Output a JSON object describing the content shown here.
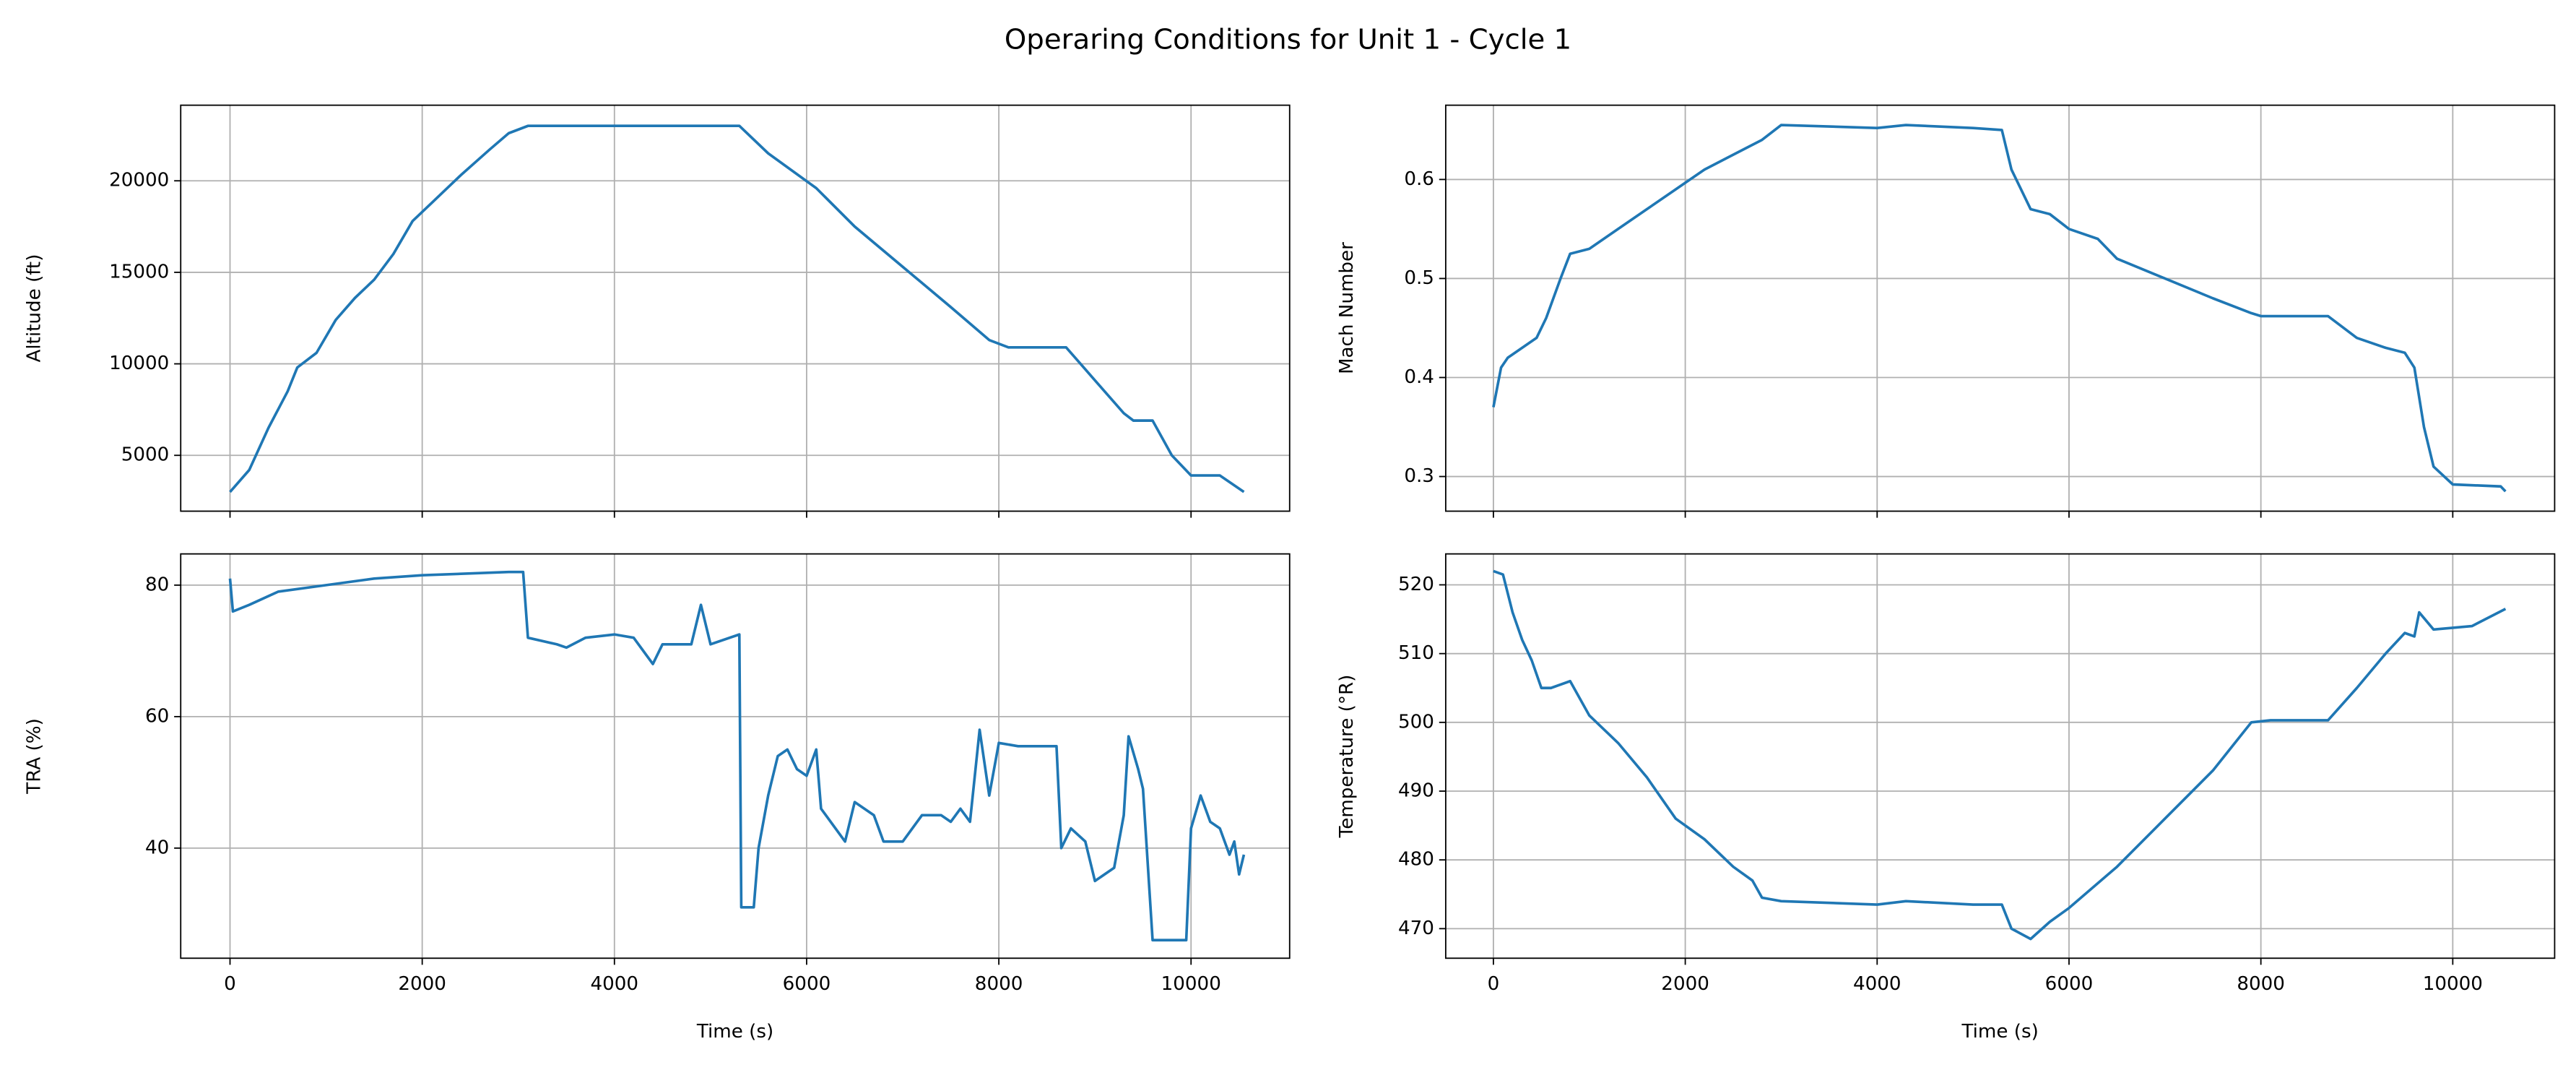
{
  "title": "Operaring Conditions for Unit 1 - Cycle 1",
  "chart_data": [
    {
      "type": "line",
      "ylabel": "Altitude (ft)",
      "color": "#1f77b4",
      "grid": true,
      "xticklabels": false,
      "xlim": [
        -513,
        11026
      ],
      "ylim": [
        1950,
        24130
      ],
      "xticks": [
        0,
        2000,
        4000,
        6000,
        8000,
        10000
      ],
      "yticks": [
        5000,
        10000,
        15000,
        20000
      ],
      "x": [
        0,
        200,
        400,
        600,
        700,
        900,
        1100,
        1300,
        1500,
        1700,
        1900,
        2100,
        2400,
        2700,
        2900,
        3100,
        5300,
        5600,
        6100,
        6500,
        7000,
        7500,
        7900,
        8100,
        8700,
        9000,
        9300,
        9400,
        9600,
        9800,
        10000,
        10300,
        10550
      ],
      "values": [
        3000,
        4200,
        6500,
        8500,
        9800,
        10600,
        12400,
        13600,
        14600,
        16000,
        17800,
        18800,
        20300,
        21700,
        22600,
        23000,
        23000,
        21500,
        19600,
        17500,
        15300,
        13100,
        11300,
        10900,
        10900,
        9100,
        7300,
        6900,
        6900,
        5000,
        3900,
        3900,
        3000
      ]
    },
    {
      "type": "line",
      "ylabel": "Mach Number",
      "color": "#1f77b4",
      "grid": true,
      "xticklabels": false,
      "xlim": [
        -497,
        11062
      ],
      "ylim": [
        0.265,
        0.675
      ],
      "xticks": [
        0,
        2000,
        4000,
        6000,
        8000,
        10000
      ],
      "yticks": [
        0.3,
        0.4,
        0.5,
        0.6
      ],
      "x": [
        0,
        80,
        150,
        300,
        450,
        550,
        700,
        800,
        1000,
        1300,
        1600,
        1900,
        2200,
        2500,
        2800,
        3000,
        4000,
        4300,
        5000,
        5300,
        5400,
        5600,
        5800,
        6000,
        6300,
        6500,
        7000,
        7500,
        7900,
        8000,
        8700,
        9000,
        9300,
        9500,
        9600,
        9700,
        9800,
        10000,
        10500,
        10550
      ],
      "values": [
        0.37,
        0.41,
        0.42,
        0.43,
        0.44,
        0.46,
        0.5,
        0.525,
        0.53,
        0.55,
        0.57,
        0.59,
        0.61,
        0.625,
        0.64,
        0.655,
        0.652,
        0.655,
        0.652,
        0.65,
        0.61,
        0.57,
        0.565,
        0.55,
        0.54,
        0.52,
        0.5,
        0.48,
        0.465,
        0.462,
        0.462,
        0.44,
        0.43,
        0.425,
        0.41,
        0.35,
        0.31,
        0.292,
        0.29,
        0.285
      ]
    },
    {
      "type": "line",
      "ylabel": "TRA (%)",
      "xlabel": "Time (s)",
      "color": "#1f77b4",
      "grid": true,
      "xticklabels": true,
      "xlim": [
        -513,
        11026
      ],
      "ylim": [
        23.25,
        84.75
      ],
      "xticks": [
        0,
        2000,
        4000,
        6000,
        8000,
        10000
      ],
      "yticks": [
        40,
        60,
        80
      ],
      "x": [
        0,
        30,
        200,
        500,
        1000,
        1500,
        2000,
        2900,
        3050,
        3100,
        3400,
        3500,
        3700,
        4000,
        4200,
        4400,
        4500,
        4800,
        4900,
        5000,
        5300,
        5320,
        5450,
        5500,
        5600,
        5700,
        5800,
        5900,
        6000,
        6100,
        6150,
        6300,
        6400,
        6500,
        6700,
        6800,
        7000,
        7200,
        7400,
        7500,
        7600,
        7700,
        7800,
        7900,
        8000,
        8200,
        8600,
        8650,
        8750,
        8900,
        9000,
        9200,
        9300,
        9350,
        9450,
        9500,
        9600,
        9950,
        10000,
        10100,
        10200,
        10300,
        10400,
        10450,
        10500,
        10550
      ],
      "values": [
        81,
        76,
        77,
        79,
        80,
        81,
        81.5,
        82,
        82,
        72,
        71,
        70.5,
        72,
        72.5,
        72,
        68,
        71,
        71,
        77,
        71,
        72.5,
        31,
        31,
        40,
        48,
        54,
        55,
        52,
        51,
        55,
        46,
        43,
        41,
        47,
        45,
        41,
        41,
        45,
        45,
        44,
        46,
        44,
        58,
        48,
        56,
        55.5,
        55.5,
        40,
        43,
        41,
        35,
        37,
        45,
        57,
        52,
        49,
        26,
        26,
        43,
        48,
        44,
        43,
        39,
        41,
        36,
        39
      ]
    },
    {
      "type": "line",
      "ylabel": "Temperature (°R)",
      "xlabel": "Time (s)",
      "color": "#1f77b4",
      "grid": true,
      "xticklabels": true,
      "xlim": [
        -497,
        11062
      ],
      "ylim": [
        465.7,
        524.5
      ],
      "xticks": [
        0,
        2000,
        4000,
        6000,
        8000,
        10000
      ],
      "yticks": [
        470,
        480,
        490,
        500,
        510,
        520
      ],
      "x": [
        0,
        100,
        200,
        300,
        400,
        500,
        600,
        800,
        1000,
        1300,
        1600,
        1900,
        2200,
        2500,
        2700,
        2800,
        3000,
        4000,
        4300,
        5000,
        5300,
        5400,
        5600,
        5800,
        6000,
        6500,
        7000,
        7500,
        7900,
        8100,
        8700,
        9000,
        9300,
        9500,
        9600,
        9650,
        9800,
        10200,
        10550
      ],
      "values": [
        522,
        521.5,
        516,
        512,
        509,
        505,
        505,
        506,
        501,
        497,
        492,
        486,
        483,
        479,
        477,
        474.5,
        474,
        473.5,
        474,
        473.5,
        473.5,
        470,
        468.5,
        471,
        473,
        479,
        486,
        493,
        500,
        500.3,
        500.3,
        505,
        510,
        513,
        512.5,
        516,
        513.5,
        514,
        516.5
      ]
    }
  ]
}
